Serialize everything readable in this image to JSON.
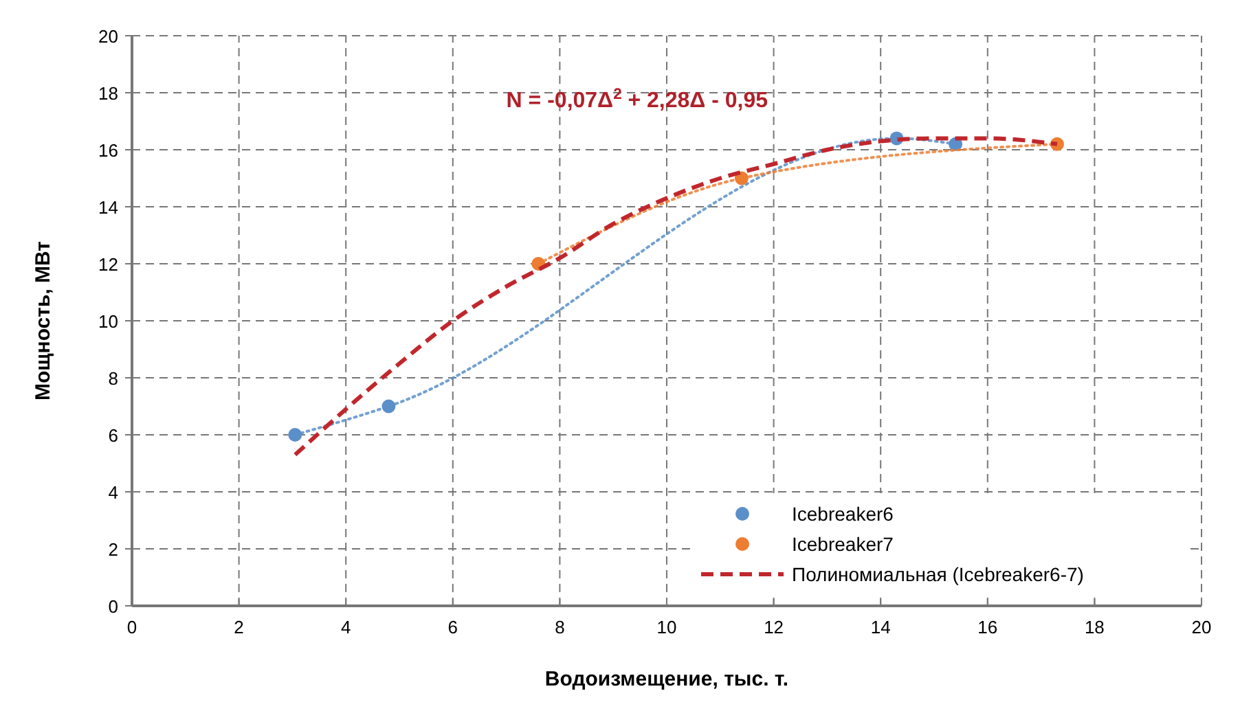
{
  "chart_data": {
    "type": "line",
    "xlabel": "Водоизмещение, тыс. т.",
    "ylabel": "Мощность, МВт",
    "xlim": [
      0,
      20
    ],
    "xticks": [
      0,
      2,
      4,
      6,
      8,
      10,
      12,
      14,
      16,
      18,
      20
    ],
    "ylim": [
      0,
      20
    ],
    "yticks": [
      0,
      2,
      4,
      6,
      8,
      10,
      12,
      14,
      16,
      18,
      20
    ],
    "grid": true,
    "legend": "bottom right",
    "annotations": [
      "N = -0,07Δ$^{2}$ + 2,28Δ - 0,95"
    ],
    "series": [
      {
        "name": "Icebreaker6",
        "color": "#5b8fc9",
        "marker": "circle",
        "line_style": "dotted",
        "x": [
          3.05,
          4.8,
          14.3,
          15.4
        ],
        "values": [
          6,
          7,
          16.4,
          16.2
        ]
      },
      {
        "name": "Icebreaker7",
        "color": "#ed7d31",
        "marker": "circle",
        "line_style": "dotted",
        "x": [
          7.6,
          11.4,
          17.3
        ],
        "values": [
          12,
          15,
          16.2
        ]
      },
      {
        "name": "Полиномиальная (Icebreaker6-7)",
        "color": "#c0272d",
        "marker": "none",
        "line_style": "dashed",
        "x": [
          3.05,
          4,
          5,
          6,
          7,
          8,
          9,
          10,
          11,
          12,
          13,
          14,
          15,
          16,
          17.3
        ],
        "values": [
          5.3,
          6.9,
          8.5,
          10,
          11.2,
          12.2,
          13.4,
          14.3,
          15,
          15.5,
          16,
          16.3,
          16.4,
          16.4,
          16.2
        ]
      }
    ]
  }
}
